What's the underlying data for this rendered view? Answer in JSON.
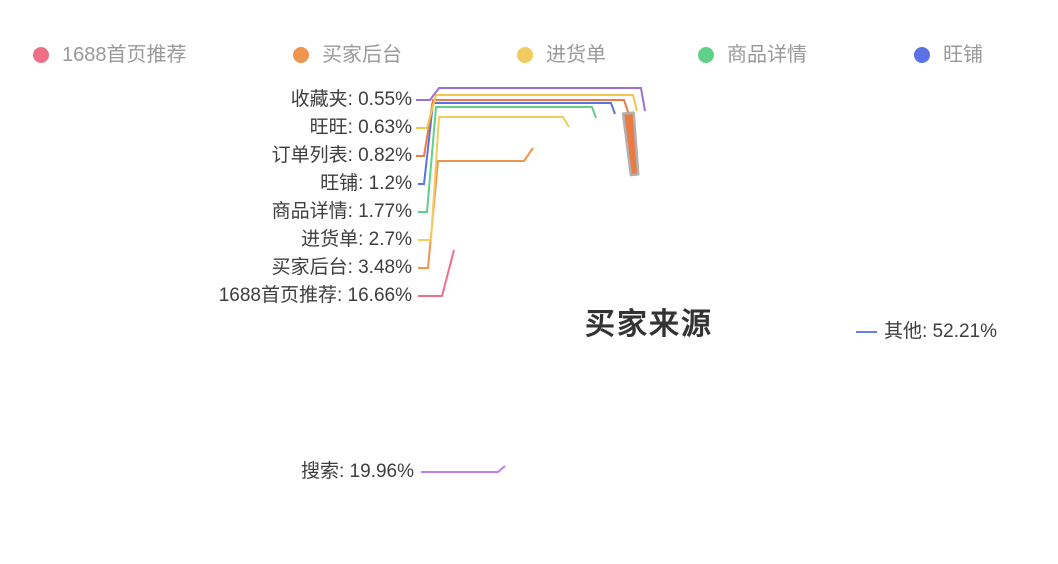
{
  "chart_data": {
    "type": "pie",
    "variant": "donut",
    "title": "买家来源",
    "start_angle": 90,
    "clockwise": true,
    "background": "#ffffff",
    "legend": {
      "position": "top",
      "items": [
        {
          "label": "1688首页推荐",
          "color": "#ed7088"
        },
        {
          "label": "买家后台",
          "color": "#f0954e"
        },
        {
          "label": "进货单",
          "color": "#f2cc60"
        },
        {
          "label": "商品详情",
          "color": "#5fd08a"
        },
        {
          "label": "旺铺",
          "color": "#5a72e6"
        }
      ]
    },
    "slices": [
      {
        "id": "other",
        "name": "其他",
        "value": 52.21,
        "label_text": "其他: 52.21%",
        "color": "#6282e8"
      },
      {
        "id": "search",
        "name": "搜索",
        "value": 19.96,
        "label_text": "搜索: 19.96%",
        "color": "#c57cea"
      },
      {
        "id": "1688-homepage",
        "name": "1688首页推荐",
        "value": 16.66,
        "label_text": "1688首页推荐: 16.66%",
        "color": "#ed7088"
      },
      {
        "id": "buyer-backend",
        "name": "买家后台",
        "value": 3.48,
        "label_text": "买家后台: 3.48%",
        "color": "#f0954e"
      },
      {
        "id": "purchase-list",
        "name": "进货单",
        "value": 2.7,
        "label_text": "进货单: 2.7%",
        "color": "#f2cc60"
      },
      {
        "id": "product-detail",
        "name": "商品详情",
        "value": 1.77,
        "label_text": "商品详情: 1.77%",
        "color": "#5fd08a"
      },
      {
        "id": "wangpu",
        "name": "旺铺",
        "value": 1.2,
        "label_text": "旺铺: 1.2%",
        "color": "#5a72e6"
      },
      {
        "id": "order-list",
        "name": "订单列表",
        "value": 0.82,
        "label_text": "订单列表: 0.82%",
        "color": "#ee7a43",
        "border": "#b0b0b0"
      },
      {
        "id": "wangwang",
        "name": "旺旺",
        "value": 0.63,
        "label_text": "旺旺: 0.63%",
        "color": "#f4c54e"
      },
      {
        "id": "favorites",
        "name": "收藏夹",
        "value": 0.55,
        "label_text": "收藏夹: 0.55%",
        "color": "#9b6fd3"
      }
    ]
  }
}
